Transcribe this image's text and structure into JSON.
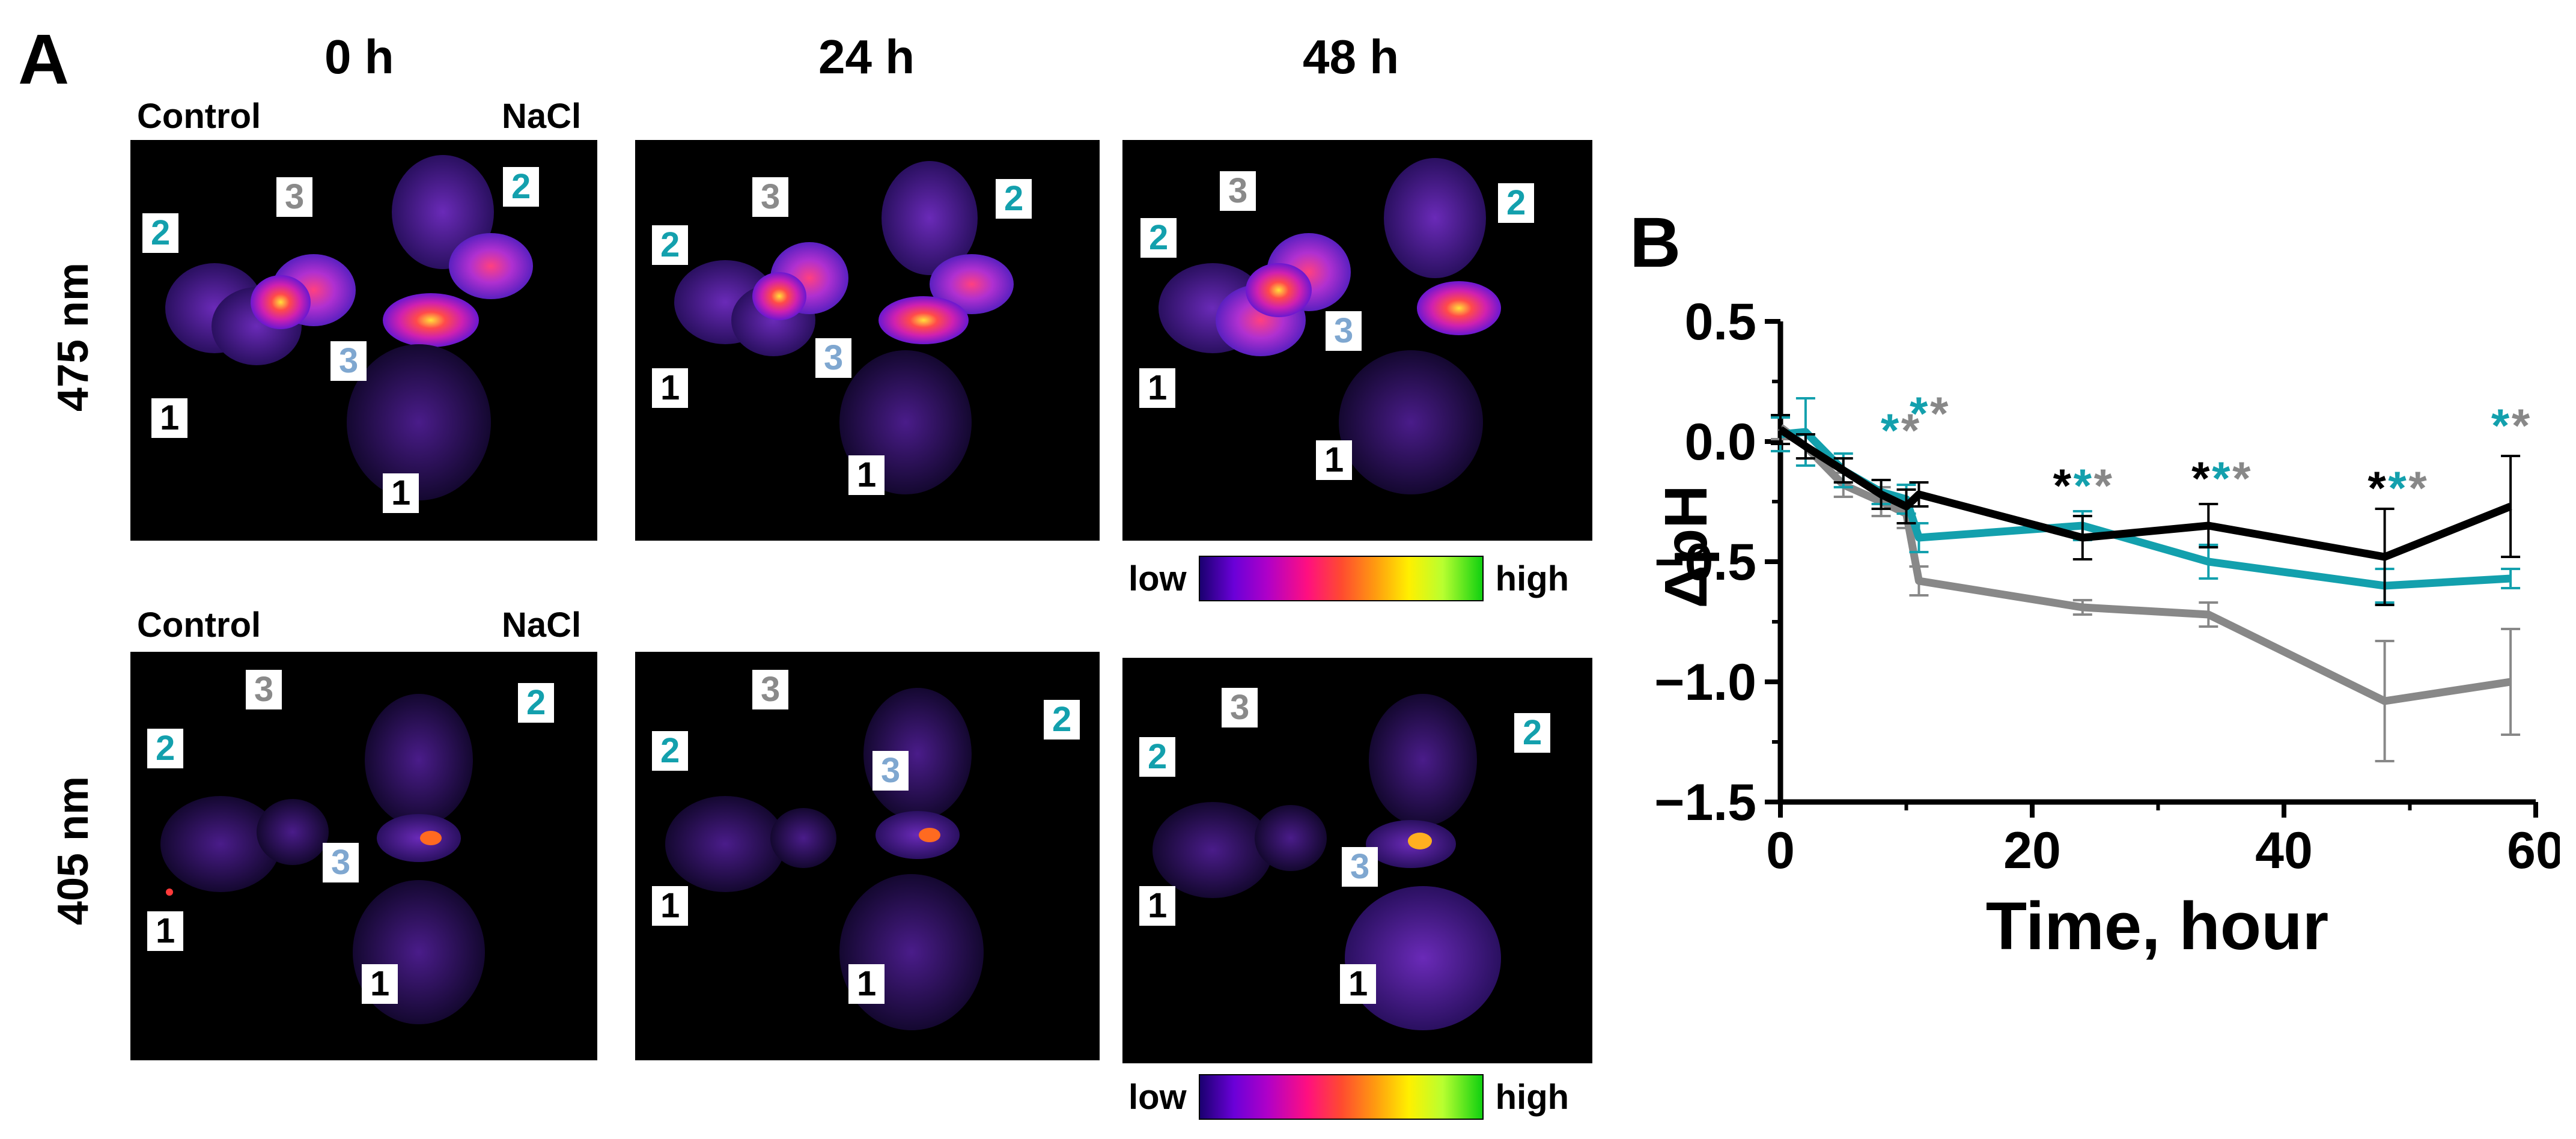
{
  "panel_a": {
    "letter": "A",
    "time_labels": [
      "0 h",
      "24 h",
      "48 h"
    ],
    "wavelength_labels": [
      "475 nm",
      "405 nm"
    ],
    "control_label": "Control",
    "nacl_label": "NaCl",
    "colorbar": {
      "low": "low",
      "high": "high"
    },
    "plant_labels": {
      "one": "1",
      "two": "2",
      "three": "3"
    },
    "label_colors": {
      "one": "#000000",
      "two": "#13a0ad",
      "three_gray": "#8a8a8a",
      "three_blue": "#7fa7d0"
    }
  },
  "panel_b": {
    "letter": "B"
  },
  "chart_data": {
    "type": "line",
    "xlabel": "Time, hour",
    "ylabel": "ΔpH",
    "xlim": [
      0,
      60
    ],
    "ylim": [
      -1.5,
      0.5
    ],
    "x_ticks": [
      "0",
      "20",
      "40",
      "60"
    ],
    "y_ticks": [
      "0.5",
      "0.0",
      "−0.5",
      "−1.0",
      "−1.5"
    ],
    "series": [
      {
        "color": "#000000",
        "x": [
          0,
          2,
          5,
          8,
          10,
          11,
          24,
          34,
          48,
          58
        ],
        "y": [
          0.05,
          -0.02,
          -0.12,
          -0.22,
          -0.27,
          -0.22,
          -0.4,
          -0.35,
          -0.48,
          -0.27
        ],
        "err": [
          0.06,
          0.05,
          0.05,
          0.06,
          0.07,
          0.05,
          0.09,
          0.09,
          0.2,
          0.21
        ]
      },
      {
        "color": "#13a0ad",
        "x": [
          0,
          2,
          5,
          8,
          10,
          11,
          24,
          34,
          48,
          58
        ],
        "y": [
          0.03,
          0.04,
          -0.12,
          -0.21,
          -0.24,
          -0.4,
          -0.35,
          -0.5,
          -0.6,
          -0.57
        ],
        "err": [
          0.07,
          0.14,
          0.07,
          0.05,
          0.06,
          0.06,
          0.06,
          0.07,
          0.07,
          0.04
        ]
      },
      {
        "color": "#888888",
        "x": [
          0,
          2,
          5,
          8,
          10,
          11,
          24,
          34,
          48,
          58
        ],
        "y": [
          0.06,
          -0.02,
          -0.18,
          -0.25,
          -0.3,
          -0.58,
          -0.69,
          -0.72,
          -1.08,
          -1.0
        ],
        "err": [
          0.05,
          0.05,
          0.05,
          0.06,
          0.06,
          0.06,
          0.03,
          0.05,
          0.25,
          0.22
        ]
      }
    ],
    "annotations": [
      {
        "x": 9.5,
        "marks": [
          {
            "text": "*",
            "color": "#13a0ad"
          },
          {
            "text": "*",
            "color": "#888888"
          }
        ]
      },
      {
        "x": 11.8,
        "marks": [
          {
            "text": "*",
            "color": "#13a0ad"
          },
          {
            "text": "*",
            "color": "#888888"
          }
        ]
      },
      {
        "x": 24,
        "marks": [
          {
            "text": "*",
            "color": "#000000"
          },
          {
            "text": "*",
            "color": "#13a0ad"
          },
          {
            "text": "*",
            "color": "#888888"
          }
        ]
      },
      {
        "x": 35,
        "marks": [
          {
            "text": "*",
            "color": "#000000"
          },
          {
            "text": "*",
            "color": "#13a0ad"
          },
          {
            "text": "*",
            "color": "#888888"
          }
        ]
      },
      {
        "x": 49,
        "marks": [
          {
            "text": "*",
            "color": "#000000"
          },
          {
            "text": "*",
            "color": "#13a0ad"
          },
          {
            "text": "*",
            "color": "#888888"
          }
        ]
      },
      {
        "x": 58,
        "marks": [
          {
            "text": "*",
            "color": "#13a0ad"
          },
          {
            "text": "*",
            "color": "#888888"
          }
        ]
      }
    ]
  }
}
